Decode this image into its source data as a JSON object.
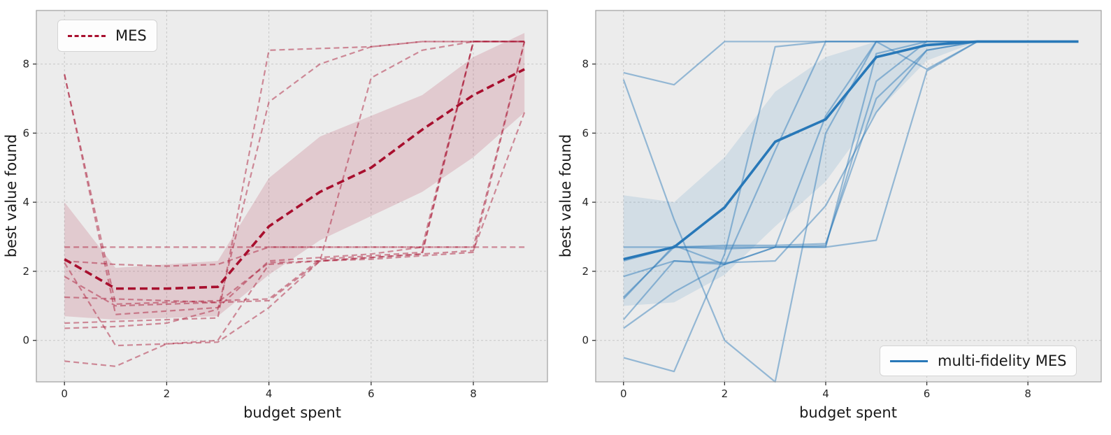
{
  "figure": {
    "background": "#ffffff",
    "axes_background": "#ececec",
    "grid_color": "#c7c7c7",
    "frame_color": "#9f9f9f",
    "tick_color": "#333333",
    "text_color": "#262626"
  },
  "chart_data": [
    {
      "type": "line",
      "xlabel": "budget spent",
      "ylabel": "best value found",
      "xlim": [
        -0.55,
        9.45
      ],
      "ylim": [
        -1.2,
        9.55
      ],
      "xticks": [
        0,
        2,
        4,
        6,
        8
      ],
      "yticks": [
        0,
        2,
        4,
        6,
        8
      ],
      "grid": true,
      "legend": {
        "label": "MES",
        "position": "upper left"
      },
      "color": "#a80f2e",
      "line_style": "dashed",
      "runs_alpha": 0.45,
      "x": [
        0,
        1,
        2,
        3,
        4,
        5,
        6,
        7,
        8,
        9
      ],
      "mean": [
        2.35,
        1.5,
        1.5,
        1.55,
        3.3,
        4.3,
        5.0,
        6.1,
        7.1,
        7.85
      ],
      "band": {
        "lo": [
          0.7,
          0.6,
          0.65,
          0.7,
          1.9,
          2.9,
          3.6,
          4.3,
          5.3,
          6.6
        ],
        "hi": [
          4.0,
          2.1,
          2.2,
          2.3,
          4.7,
          5.9,
          6.5,
          7.1,
          8.2,
          8.9
        ],
        "opacity": 0.15
      },
      "runs": [
        [
          7.7,
          0.75,
          0.85,
          0.95,
          2.3,
          2.4,
          2.5,
          2.7,
          8.65,
          8.65
        ],
        [
          7.7,
          1.05,
          1.1,
          1.15,
          1.2,
          2.35,
          2.45,
          2.55,
          8.65,
          8.65
        ],
        [
          2.7,
          2.7,
          2.7,
          2.7,
          2.7,
          2.7,
          2.7,
          2.7,
          2.7,
          2.7
        ],
        [
          2.3,
          2.2,
          2.15,
          2.2,
          2.7,
          2.7,
          2.7,
          2.7,
          2.7,
          8.65
        ],
        [
          1.85,
          1.0,
          1.05,
          1.1,
          2.25,
          2.3,
          2.4,
          2.5,
          2.6,
          6.6
        ],
        [
          1.25,
          1.2,
          1.15,
          1.1,
          1.15,
          2.3,
          2.4,
          2.5,
          8.65,
          8.65
        ],
        [
          0.5,
          0.55,
          0.6,
          0.65,
          8.4,
          8.45,
          8.5,
          8.65,
          8.65,
          8.65
        ],
        [
          0.35,
          0.4,
          0.5,
          0.9,
          6.9,
          8.0,
          8.5,
          8.65,
          8.65,
          8.65
        ],
        [
          -0.6,
          -0.75,
          -0.1,
          -0.05,
          0.95,
          2.3,
          7.6,
          8.4,
          8.65,
          8.65
        ],
        [
          2.25,
          -0.15,
          -0.1,
          0.0,
          2.2,
          2.3,
          2.35,
          2.45,
          2.55,
          8.65
        ]
      ]
    },
    {
      "type": "line",
      "xlabel": "budget spent",
      "ylabel": "best value found",
      "xlim": [
        -0.55,
        9.45
      ],
      "ylim": [
        -1.2,
        9.55
      ],
      "xticks": [
        0,
        2,
        4,
        6,
        8
      ],
      "yticks": [
        0,
        2,
        4,
        6,
        8
      ],
      "grid": true,
      "legend": {
        "label": "multi-fidelity MES",
        "position": "lower right"
      },
      "color": "#2878b8",
      "line_style": "solid",
      "runs_alpha": 0.45,
      "x": [
        0,
        1,
        2,
        3,
        4,
        5,
        6,
        7,
        8,
        9
      ],
      "mean": [
        2.35,
        2.7,
        3.85,
        5.75,
        6.4,
        8.2,
        8.55,
        8.65,
        8.65,
        8.65
      ],
      "band": {
        "lo": [
          1.0,
          1.1,
          1.9,
          3.3,
          4.6,
          6.6,
          8.1,
          8.65,
          8.65,
          8.65
        ],
        "hi": [
          4.2,
          4.0,
          5.3,
          7.2,
          8.2,
          8.65,
          8.65,
          8.65,
          8.65,
          8.65
        ],
        "opacity": 0.13
      },
      "runs": [
        [
          7.75,
          7.4,
          8.65,
          8.65,
          8.65,
          8.65,
          8.65,
          8.65,
          8.65,
          8.65
        ],
        [
          7.55,
          3.5,
          0.0,
          -1.2,
          6.0,
          8.65,
          8.65,
          8.65,
          8.65,
          8.65
        ],
        [
          2.7,
          2.7,
          2.7,
          2.7,
          2.7,
          8.3,
          8.65,
          8.65,
          8.65,
          8.65
        ],
        [
          2.3,
          2.7,
          2.75,
          2.75,
          2.8,
          7.0,
          8.4,
          8.65,
          8.65,
          8.65
        ],
        [
          1.85,
          2.3,
          2.2,
          5.5,
          8.65,
          8.65,
          8.65,
          8.65,
          8.65,
          8.65
        ],
        [
          1.25,
          2.7,
          2.65,
          2.7,
          6.5,
          8.65,
          7.85,
          8.65,
          8.65,
          8.65
        ],
        [
          0.6,
          2.3,
          2.25,
          2.3,
          3.9,
          6.6,
          8.4,
          8.65,
          8.65,
          8.65
        ],
        [
          0.35,
          1.4,
          2.2,
          2.7,
          2.75,
          7.5,
          8.65,
          8.65,
          8.65,
          8.65
        ],
        [
          -0.5,
          -0.9,
          2.5,
          8.5,
          8.65,
          8.65,
          8.65,
          8.65,
          8.65,
          8.65
        ],
        [
          1.2,
          2.75,
          2.2,
          2.7,
          2.7,
          2.9,
          7.8,
          8.65,
          8.65,
          8.65
        ]
      ]
    }
  ]
}
